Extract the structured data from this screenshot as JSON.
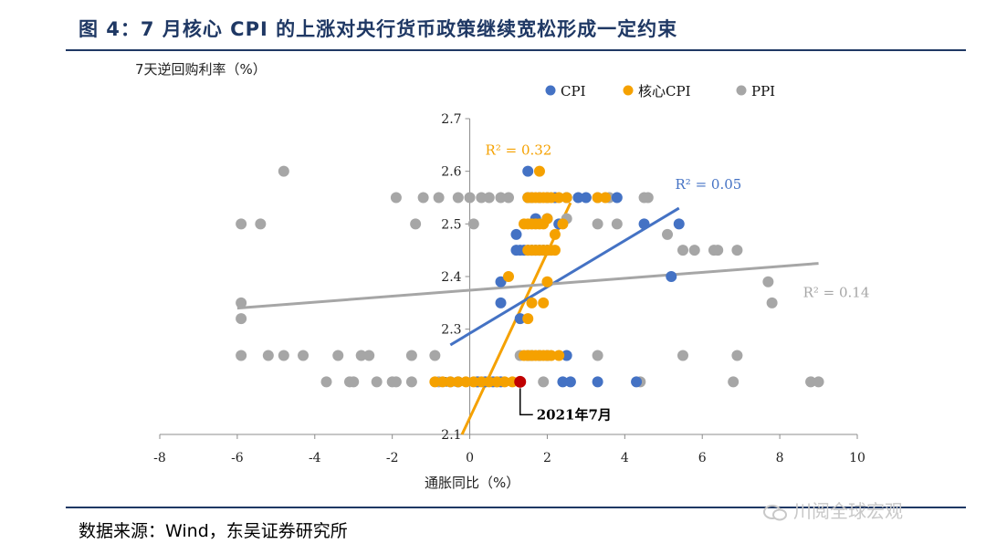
{
  "header": {
    "title": "图 4：7 月核心 CPI 的上涨对央行货币政策继续宽松形成一定约束"
  },
  "footer": {
    "source": "数据来源：Wind，东吴证券研究所",
    "watermark": "川阅全球宏观"
  },
  "chart_data": {
    "type": "scatter",
    "title": "",
    "xlabel": "通胀同比（%）",
    "ylabel": "7天逆回购利率（%）",
    "xlim": [
      -8,
      10
    ],
    "ylim": [
      2.1,
      2.7
    ],
    "xticks": [
      "-8",
      "-6",
      "-4",
      "-2",
      "0",
      "2",
      "4",
      "6",
      "8",
      "10"
    ],
    "yticks": [
      "2.1",
      "2.2",
      "2.3",
      "2.4",
      "2.5",
      "2.6",
      "2.7"
    ],
    "legend_position": "top-right",
    "grid": false,
    "colors": {
      "cpi": "#4472c4",
      "core": "#f5a100",
      "ppi": "#a6a6a6",
      "highlight": "#c00000"
    },
    "series": [
      {
        "name": "PPI",
        "key": "ppi",
        "points": [
          [
            -4.8,
            2.6
          ],
          [
            -5.9,
            2.5
          ],
          [
            -5.4,
            2.5
          ],
          [
            -1.4,
            2.5
          ],
          [
            0.1,
            2.5
          ],
          [
            -1.9,
            2.55
          ],
          [
            -1.2,
            2.55
          ],
          [
            -0.8,
            2.55
          ],
          [
            -0.3,
            2.55
          ],
          [
            0,
            2.55
          ],
          [
            0.3,
            2.55
          ],
          [
            0.5,
            2.55
          ],
          [
            0.8,
            2.55
          ],
          [
            1.0,
            2.55
          ],
          [
            3.3,
            2.55
          ],
          [
            3.6,
            2.55
          ],
          [
            4.5,
            2.55
          ],
          [
            4.6,
            2.55
          ],
          [
            2.5,
            2.51
          ],
          [
            3.3,
            2.5
          ],
          [
            3.8,
            2.5
          ],
          [
            5.1,
            2.48
          ],
          [
            5.5,
            2.45
          ],
          [
            5.8,
            2.45
          ],
          [
            6.3,
            2.45
          ],
          [
            6.4,
            2.45
          ],
          [
            6.9,
            2.45
          ],
          [
            7.7,
            2.39
          ],
          [
            7.8,
            2.35
          ],
          [
            -5.9,
            2.35
          ],
          [
            -5.9,
            2.32
          ],
          [
            -5.9,
            2.25
          ],
          [
            -5.2,
            2.25
          ],
          [
            -4.8,
            2.25
          ],
          [
            -4.3,
            2.25
          ],
          [
            -3.4,
            2.25
          ],
          [
            -2.8,
            2.25
          ],
          [
            -2.6,
            2.25
          ],
          [
            -1.5,
            2.25
          ],
          [
            -0.9,
            2.25
          ],
          [
            1.3,
            2.25
          ],
          [
            3.3,
            2.25
          ],
          [
            5.5,
            2.25
          ],
          [
            6.9,
            2.25
          ],
          [
            -3.7,
            2.2
          ],
          [
            -3.1,
            2.2
          ],
          [
            -3.0,
            2.2
          ],
          [
            -2.4,
            2.2
          ],
          [
            -2.0,
            2.2
          ],
          [
            -1.9,
            2.2
          ],
          [
            -1.5,
            2.2
          ],
          [
            -0.8,
            2.2
          ],
          [
            -0.5,
            2.2
          ],
          [
            0.2,
            2.2
          ],
          [
            0.4,
            2.2
          ],
          [
            0.7,
            2.2
          ],
          [
            1.9,
            2.2
          ],
          [
            4.4,
            2.2
          ],
          [
            6.8,
            2.2
          ],
          [
            8.8,
            2.2
          ],
          [
            9.0,
            2.2
          ]
        ]
      },
      {
        "name": "CPI",
        "key": "cpi",
        "points": [
          [
            1.5,
            2.6
          ],
          [
            1.5,
            2.55
          ],
          [
            1.6,
            2.55
          ],
          [
            1.8,
            2.55
          ],
          [
            2.0,
            2.55
          ],
          [
            2.2,
            2.55
          ],
          [
            2.5,
            2.55
          ],
          [
            2.8,
            2.55
          ],
          [
            3.0,
            2.55
          ],
          [
            3.8,
            2.55
          ],
          [
            1.7,
            2.51
          ],
          [
            2.0,
            2.51
          ],
          [
            2.3,
            2.5
          ],
          [
            4.5,
            2.5
          ],
          [
            5.4,
            2.5
          ],
          [
            1.2,
            2.48
          ],
          [
            1.2,
            2.45
          ],
          [
            1.3,
            2.45
          ],
          [
            1.4,
            2.45
          ],
          [
            1.5,
            2.45
          ],
          [
            1.6,
            2.45
          ],
          [
            1.7,
            2.45
          ],
          [
            1.8,
            2.45
          ],
          [
            1.9,
            2.45
          ],
          [
            2.0,
            2.45
          ],
          [
            0.8,
            2.39
          ],
          [
            5.2,
            2.4
          ],
          [
            0.8,
            2.35
          ],
          [
            1.3,
            2.32
          ],
          [
            1.5,
            2.25
          ],
          [
            1.6,
            2.25
          ],
          [
            1.8,
            2.25
          ],
          [
            2.0,
            2.25
          ],
          [
            2.5,
            2.25
          ],
          [
            -0.3,
            2.2
          ],
          [
            0.2,
            2.2
          ],
          [
            0.4,
            2.2
          ],
          [
            0.6,
            2.2
          ],
          [
            0.8,
            2.2
          ],
          [
            2.4,
            2.2
          ],
          [
            2.6,
            2.2
          ],
          [
            3.3,
            2.2
          ],
          [
            4.3,
            2.2
          ]
        ]
      },
      {
        "name": "核心CPI",
        "key": "core",
        "points": [
          [
            1.8,
            2.6
          ],
          [
            1.5,
            2.55
          ],
          [
            1.6,
            2.55
          ],
          [
            1.7,
            2.55
          ],
          [
            1.8,
            2.55
          ],
          [
            1.9,
            2.55
          ],
          [
            2.0,
            2.55
          ],
          [
            2.1,
            2.55
          ],
          [
            2.3,
            2.55
          ],
          [
            2.5,
            2.55
          ],
          [
            3.3,
            2.55
          ],
          [
            3.5,
            2.55
          ],
          [
            1.4,
            2.5
          ],
          [
            1.5,
            2.5
          ],
          [
            1.6,
            2.5
          ],
          [
            1.7,
            2.5
          ],
          [
            1.8,
            2.5
          ],
          [
            1.9,
            2.5
          ],
          [
            2.0,
            2.51
          ],
          [
            2.4,
            2.5
          ],
          [
            2.2,
            2.48
          ],
          [
            1.5,
            2.45
          ],
          [
            1.6,
            2.45
          ],
          [
            1.7,
            2.45
          ],
          [
            1.8,
            2.45
          ],
          [
            1.9,
            2.45
          ],
          [
            2.0,
            2.45
          ],
          [
            2.1,
            2.45
          ],
          [
            2.2,
            2.45
          ],
          [
            1.0,
            2.4
          ],
          [
            2.0,
            2.39
          ],
          [
            1.6,
            2.35
          ],
          [
            1.9,
            2.35
          ],
          [
            1.5,
            2.32
          ],
          [
            1.4,
            2.25
          ],
          [
            1.5,
            2.25
          ],
          [
            1.6,
            2.25
          ],
          [
            1.7,
            2.25
          ],
          [
            1.8,
            2.25
          ],
          [
            1.9,
            2.25
          ],
          [
            2.0,
            2.25
          ],
          [
            2.1,
            2.25
          ],
          [
            2.3,
            2.25
          ],
          [
            -0.9,
            2.2
          ],
          [
            -0.7,
            2.2
          ],
          [
            -0.5,
            2.2
          ],
          [
            -0.3,
            2.2
          ],
          [
            -0.1,
            2.2
          ],
          [
            0.1,
            2.2
          ],
          [
            0.3,
            2.2
          ],
          [
            0.5,
            2.2
          ],
          [
            0.7,
            2.2
          ],
          [
            0.9,
            2.2
          ],
          [
            1.1,
            2.2
          ]
        ]
      }
    ],
    "highlight_point": {
      "x": 1.3,
      "y": 2.2,
      "label": "2021年7月"
    },
    "trendlines": [
      {
        "key": "core",
        "x": [
          -0.2,
          2.6
        ],
        "y": [
          2.1,
          2.54
        ],
        "r2_label": "R² = 0.32",
        "label_x": 0.4,
        "label_y": 2.64
      },
      {
        "key": "cpi",
        "x": [
          -0.5,
          5.4
        ],
        "y": [
          2.27,
          2.53
        ],
        "r2_label": "R² = 0.05",
        "label_x": 5.3,
        "label_y": 2.575
      },
      {
        "key": "ppi",
        "x": [
          -6,
          9
        ],
        "y": [
          2.34,
          2.425
        ],
        "r2_label": "R² = 0.14",
        "label_x": 8.6,
        "label_y": 2.37
      }
    ]
  }
}
